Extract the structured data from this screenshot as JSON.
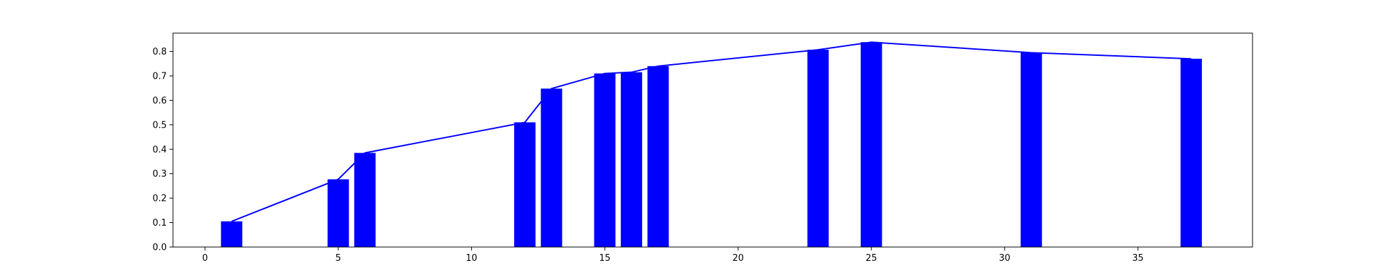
{
  "chart_data": {
    "type": "bar",
    "title": "",
    "xlabel": "",
    "ylabel": "",
    "xlim": [
      -1.2,
      39.3
    ],
    "ylim": [
      0,
      0.875
    ],
    "x_ticks": [
      0,
      5,
      10,
      15,
      20,
      25,
      30,
      35
    ],
    "y_ticks": [
      0.0,
      0.1,
      0.2,
      0.3,
      0.4,
      0.5,
      0.6,
      0.7,
      0.8
    ],
    "bar_width": 0.8,
    "series": [
      {
        "type": "bar",
        "x": [
          1,
          5,
          6,
          12,
          13,
          15,
          16,
          17,
          23,
          25,
          31,
          37
        ],
        "values": [
          0.105,
          0.277,
          0.385,
          0.51,
          0.648,
          0.71,
          0.715,
          0.74,
          0.807,
          0.838,
          0.795,
          0.77
        ]
      },
      {
        "type": "line",
        "x": [
          1,
          5,
          6,
          12,
          13,
          15,
          16,
          17,
          23,
          25,
          31,
          37
        ],
        "values": [
          0.105,
          0.277,
          0.385,
          0.51,
          0.648,
          0.71,
          0.715,
          0.74,
          0.807,
          0.838,
          0.795,
          0.77
        ]
      }
    ],
    "grid": false,
    "legend": "none",
    "colors": {
      "bar": "#0000ff",
      "line": "#0000ff",
      "axes": "#000000"
    }
  }
}
